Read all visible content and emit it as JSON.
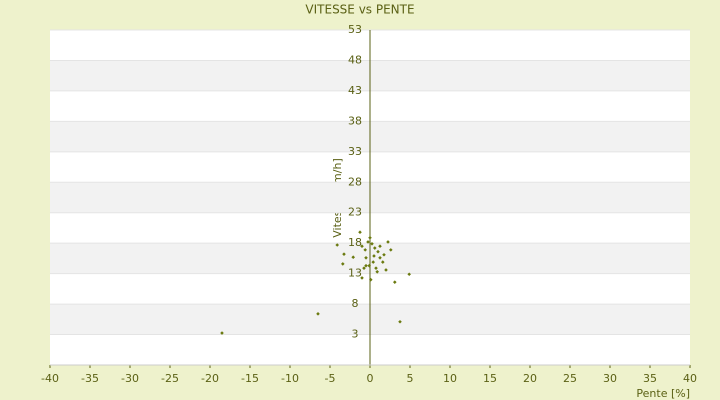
{
  "chart_data": {
    "type": "scatter",
    "title": "VITESSE vs PENTE",
    "x_label": "Pente [%]",
    "y_label": "Vitesse [km/h]",
    "xlim": [
      -40,
      40
    ],
    "xticks": [
      -40,
      -35,
      -30,
      -25,
      -20,
      -15,
      -10,
      -5,
      0,
      5,
      10,
      15,
      20,
      25,
      30,
      35,
      40
    ],
    "ylim": [
      -2,
      53
    ],
    "yticks": [
      3,
      8,
      13,
      18,
      23,
      28,
      33,
      38,
      43,
      48,
      53
    ],
    "color": "#6b7a10",
    "grid": true,
    "x": [
      -18.5,
      -6.5,
      3.75,
      4.9,
      3.1,
      -4.1,
      -3.25,
      -3.4,
      -2.1,
      -1.25,
      -1,
      -0.5,
      0.1,
      -0.25,
      0.25,
      0.6,
      1,
      1.25,
      1.6,
      2,
      2.25,
      2.6,
      1.75,
      -0.6,
      -1,
      0.4,
      0.75,
      0,
      0.9,
      -0.5,
      1.25,
      0.5,
      -0.1,
      -0.75
    ],
    "y": [
      3.25,
      6.4,
      5.1,
      12.9,
      11.6,
      17.7,
      16.2,
      14.6,
      15.7,
      19.8,
      12.3,
      14.3,
      12,
      18.2,
      17.9,
      17.2,
      16.6,
      15.6,
      14.9,
      13.6,
      18.2,
      16.9,
      16.1,
      16.9,
      17.5,
      14.9,
      13.9,
      18.9,
      13.3,
      15.6,
      17.5,
      15.9,
      14.3,
      13.9
    ]
  }
}
